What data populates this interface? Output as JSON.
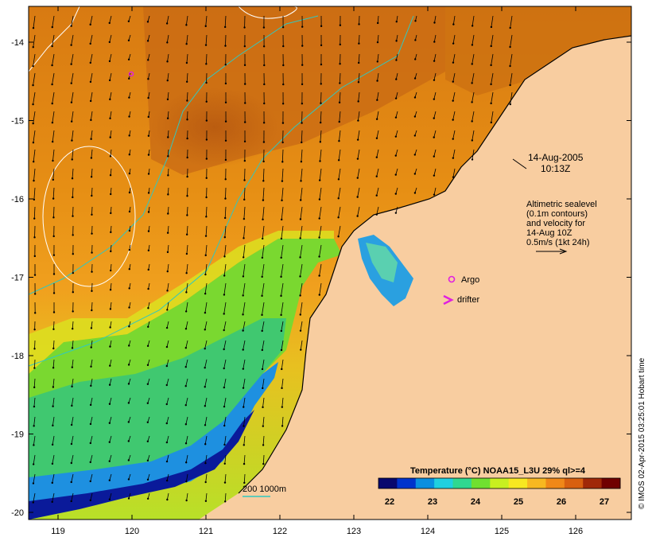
{
  "map": {
    "title_date": "14-Aug-2005",
    "title_time": "10:13Z",
    "lat_ticks": [
      "-14",
      "-15",
      "-16",
      "-17",
      "-18",
      "-19",
      "-20"
    ],
    "lon_ticks": [
      "119",
      "120",
      "121",
      "122",
      "123",
      "124",
      "125",
      "126"
    ]
  },
  "legend": {
    "alt_lines": [
      "Altimetric sealevel",
      "(0.1m contours)",
      "and velocity for",
      "14-Aug 10Z",
      "0.5m/s (1kt 24h)"
    ],
    "argo_label": "Argo",
    "drifter_label": "drifter",
    "depth_label": "200  1000m"
  },
  "colorbar": {
    "title": "Temperature (°C) NOAA15_L3U 29% ql>=4",
    "ticks": [
      "22",
      "23",
      "24",
      "25",
      "26",
      "27"
    ],
    "colors": [
      "#08086e",
      "#0033cc",
      "#0a8fe0",
      "#20d0e0",
      "#30d890",
      "#70e030",
      "#c8f020",
      "#f8e820",
      "#f8b820",
      "#f08818",
      "#d86010",
      "#a02808",
      "#700000"
    ]
  },
  "credit": "© IMOS 02-Apr-2015 03:25:01 Hobart time",
  "palette": {
    "land": "#f8cda0",
    "sea_warm": "#d97810",
    "sea_mid": "#f0a020",
    "sea_cool": "#9ae030",
    "contour": "#ffffff",
    "isobath": "#30c8c0",
    "argo": "#e020e0"
  }
}
